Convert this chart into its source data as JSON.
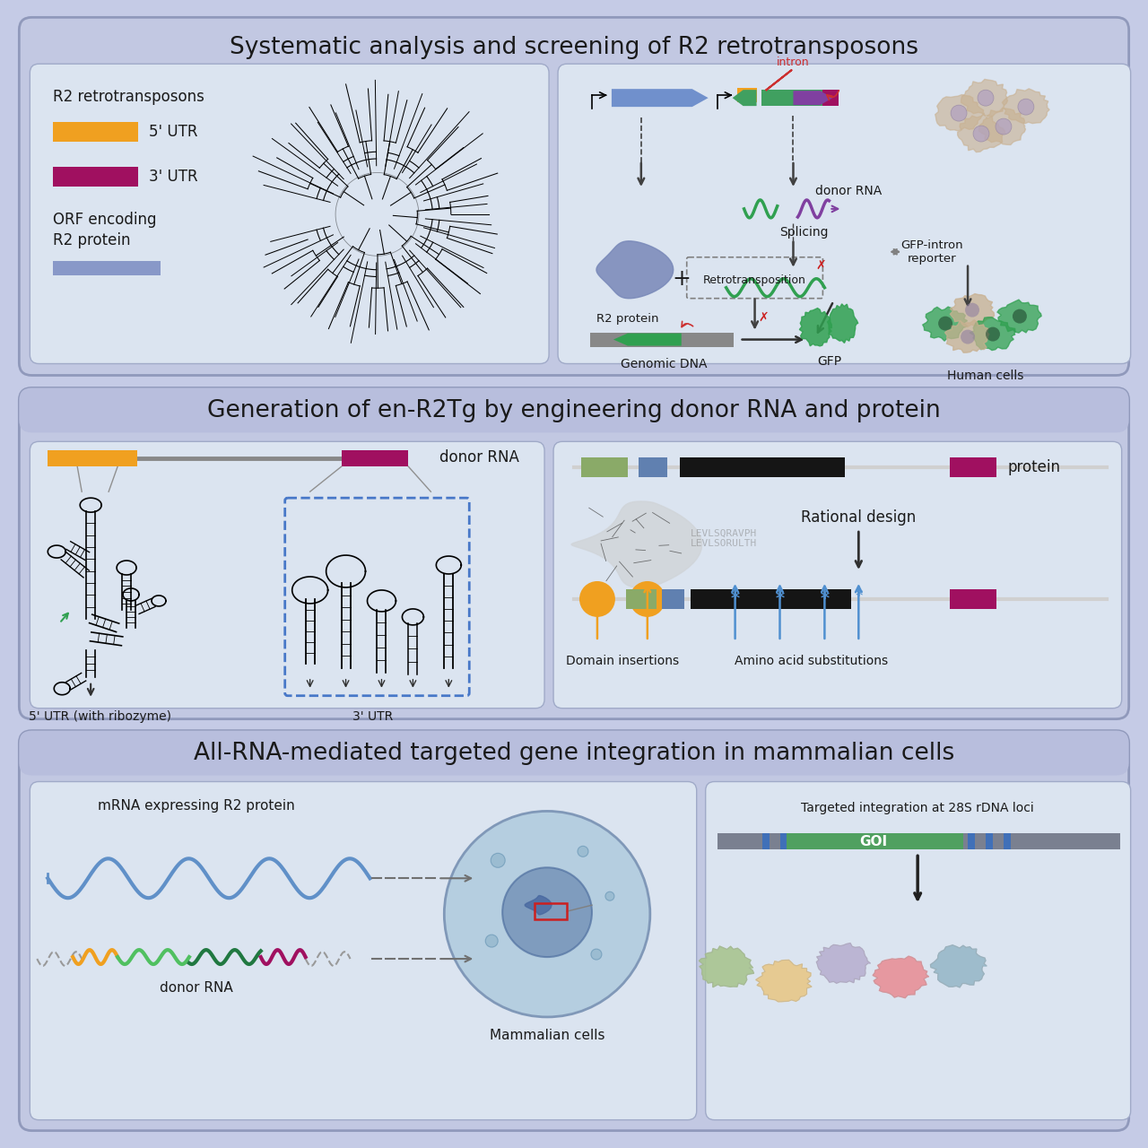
{
  "panel1_title": "Systematic analysis and screening of R2 retrotransposons",
  "panel2_title": "Generation of en-R2Tg by engineering donor RNA and protein",
  "panel3_title": "All-RNA-mediated targeted gene integration in mammalian cells",
  "bg_outer": "#c5cbe6",
  "bg_section": "#c2c8e2",
  "bg_content": "#dbe4f0",
  "bg_header": "#b8bedd",
  "color_5utr": "#f0a020",
  "color_3utr": "#a01060",
  "color_orf": "#8898c8",
  "color_green": "#30a050",
  "color_blue_arrow": "#5080c0",
  "color_purple": "#8040a0",
  "color_dark": "#1a1a1a",
  "color_gray": "#707070",
  "color_lightblue_gene": "#7090c0",
  "color_olive": "#8aaa68",
  "color_steelblue": "#6080b0",
  "color_tan_cell": "#c8b090",
  "color_red": "#cc2020"
}
